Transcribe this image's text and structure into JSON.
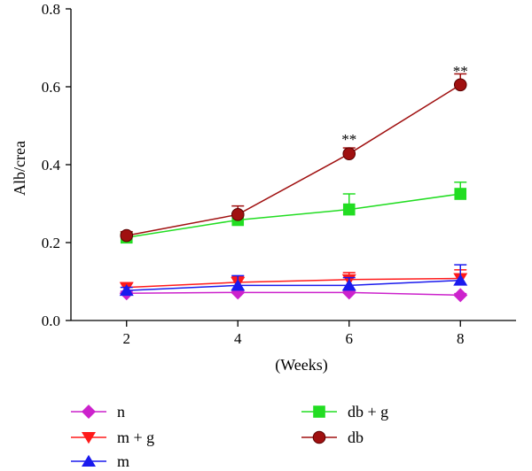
{
  "chart_data": {
    "type": "line",
    "xlabel": "(Weeks)",
    "ylabel": "Alb/crea",
    "x": [
      2,
      4,
      6,
      8
    ],
    "xlim": [
      1,
      9
    ],
    "ylim": [
      0,
      0.8
    ],
    "xticks": [
      "2",
      "4",
      "6",
      "8"
    ],
    "yticks": [
      "0.0",
      "0.2",
      "0.4",
      "0.6",
      "0.8"
    ],
    "grid": false,
    "legend_position": "bottom",
    "series": [
      {
        "name": "n",
        "values": [
          0.07,
          0.072,
          0.072,
          0.065
        ],
        "errors": [
          0.005,
          0.004,
          0.004,
          0.004
        ],
        "color": "#cc22cc",
        "marker": "diamond"
      },
      {
        "name": "m + g",
        "values": [
          0.085,
          0.098,
          0.105,
          0.108
        ],
        "errors": [
          0.012,
          0.015,
          0.018,
          0.022
        ],
        "color": "#ff1a1a",
        "marker": "triangle-down"
      },
      {
        "name": "m",
        "values": [
          0.077,
          0.09,
          0.09,
          0.103
        ],
        "errors": [
          0.008,
          0.025,
          0.02,
          0.04
        ],
        "color": "#1a1aee",
        "marker": "triangle-up"
      },
      {
        "name": "db + g",
        "values": [
          0.213,
          0.258,
          0.285,
          0.325
        ],
        "errors": [
          0.01,
          0.012,
          0.04,
          0.03
        ],
        "color": "#22dd22",
        "marker": "square"
      },
      {
        "name": "db",
        "values": [
          0.218,
          0.272,
          0.428,
          0.605
        ],
        "errors": [
          0.01,
          0.022,
          0.015,
          0.028
        ],
        "color": "#a01010",
        "marker": "circle"
      }
    ],
    "annotations": [
      {
        "text": "**",
        "x": 6,
        "y": 0.47
      },
      {
        "text": "**",
        "x": 8,
        "y": 0.645
      }
    ]
  }
}
